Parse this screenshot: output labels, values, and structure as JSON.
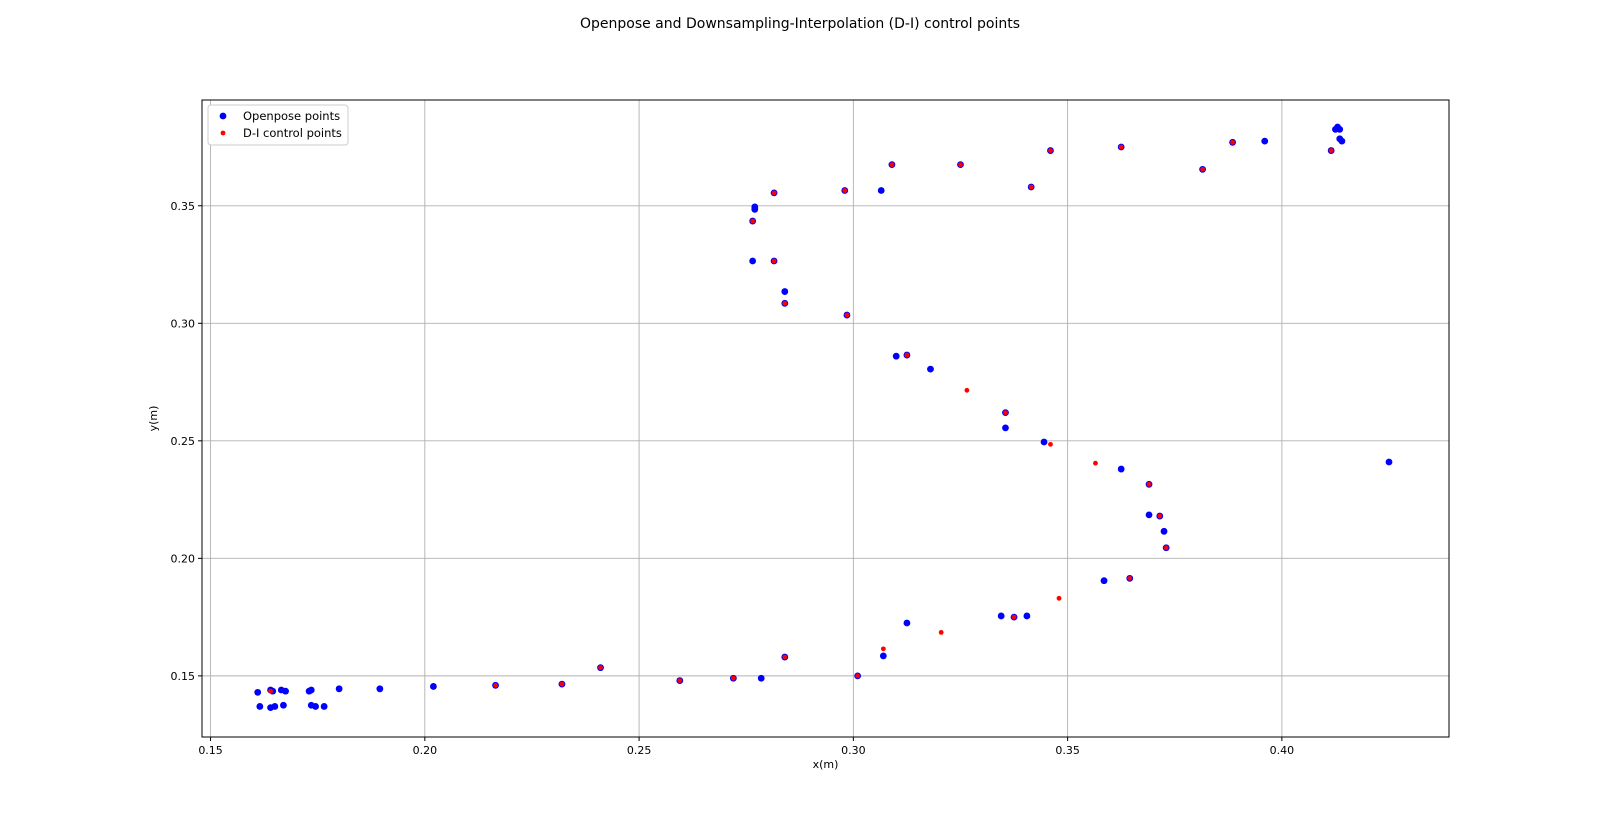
{
  "chart_data": {
    "type": "scatter",
    "title": "Openpose and Downsampling-Interpolation (D-I) control points",
    "xlabel": "x(m)",
    "ylabel": "y(m)",
    "xlim": [
      0.148,
      0.439
    ],
    "ylim": [
      0.124,
      0.395
    ],
    "xticks": [
      0.15,
      0.2,
      0.25,
      0.3,
      0.35,
      0.4
    ],
    "xtick_labels": [
      "0.15",
      "0.20",
      "0.25",
      "0.30",
      "0.35",
      "0.40"
    ],
    "yticks": [
      0.15,
      0.2,
      0.25,
      0.3,
      0.35
    ],
    "ytick_labels": [
      "0.15",
      "0.20",
      "0.25",
      "0.30",
      "0.35"
    ],
    "grid": true,
    "legend_position": "top-left",
    "series": [
      {
        "name": "Openpose points",
        "color": "#0000ff",
        "marker": "large-dot",
        "points": [
          [
            0.161,
            0.143
          ],
          [
            0.1615,
            0.137
          ],
          [
            0.164,
            0.144
          ],
          [
            0.164,
            0.1365
          ],
          [
            0.1645,
            0.1435
          ],
          [
            0.165,
            0.137
          ],
          [
            0.1665,
            0.144
          ],
          [
            0.167,
            0.1375
          ],
          [
            0.1675,
            0.1435
          ],
          [
            0.173,
            0.1435
          ],
          [
            0.1735,
            0.1375
          ],
          [
            0.1735,
            0.144
          ],
          [
            0.1745,
            0.137
          ],
          [
            0.1765,
            0.137
          ],
          [
            0.18,
            0.1445
          ],
          [
            0.1895,
            0.1445
          ],
          [
            0.202,
            0.1455
          ],
          [
            0.2165,
            0.146
          ],
          [
            0.232,
            0.1465
          ],
          [
            0.241,
            0.1535
          ],
          [
            0.2595,
            0.148
          ],
          [
            0.272,
            0.149
          ],
          [
            0.2785,
            0.149
          ],
          [
            0.284,
            0.158
          ],
          [
            0.301,
            0.15
          ],
          [
            0.307,
            0.1585
          ],
          [
            0.3125,
            0.1725
          ],
          [
            0.3345,
            0.1755
          ],
          [
            0.3375,
            0.175
          ],
          [
            0.3405,
            0.1755
          ],
          [
            0.3585,
            0.1905
          ],
          [
            0.3645,
            0.1915
          ],
          [
            0.373,
            0.2045
          ],
          [
            0.3725,
            0.2115
          ],
          [
            0.3715,
            0.218
          ],
          [
            0.369,
            0.2185
          ],
          [
            0.369,
            0.2315
          ],
          [
            0.3625,
            0.238
          ],
          [
            0.3445,
            0.2495
          ],
          [
            0.3355,
            0.2555
          ],
          [
            0.3355,
            0.262
          ],
          [
            0.318,
            0.2805
          ],
          [
            0.3125,
            0.2865
          ],
          [
            0.31,
            0.286
          ],
          [
            0.2985,
            0.3035
          ],
          [
            0.284,
            0.3085
          ],
          [
            0.284,
            0.3135
          ],
          [
            0.2815,
            0.3265
          ],
          [
            0.2765,
            0.3265
          ],
          [
            0.2765,
            0.3435
          ],
          [
            0.277,
            0.3485
          ],
          [
            0.277,
            0.3495
          ],
          [
            0.2815,
            0.3555
          ],
          [
            0.298,
            0.3565
          ],
          [
            0.3065,
            0.3565
          ],
          [
            0.309,
            0.3675
          ],
          [
            0.325,
            0.3675
          ],
          [
            0.3415,
            0.358
          ],
          [
            0.346,
            0.3735
          ],
          [
            0.3625,
            0.375
          ],
          [
            0.3815,
            0.3655
          ],
          [
            0.3885,
            0.377
          ],
          [
            0.396,
            0.3775
          ],
          [
            0.4115,
            0.3735
          ],
          [
            0.4125,
            0.3825
          ],
          [
            0.413,
            0.3835
          ],
          [
            0.4135,
            0.3825
          ],
          [
            0.4135,
            0.3785
          ],
          [
            0.414,
            0.3775
          ],
          [
            0.425,
            0.241
          ]
        ]
      },
      {
        "name": "D-I control points",
        "color": "#ff0000",
        "marker": "small-dot",
        "points": [
          [
            0.164,
            0.1435
          ],
          [
            0.2165,
            0.146
          ],
          [
            0.232,
            0.1465
          ],
          [
            0.241,
            0.1535
          ],
          [
            0.2595,
            0.148
          ],
          [
            0.272,
            0.149
          ],
          [
            0.284,
            0.158
          ],
          [
            0.301,
            0.15
          ],
          [
            0.307,
            0.1615
          ],
          [
            0.3205,
            0.1685
          ],
          [
            0.3375,
            0.175
          ],
          [
            0.348,
            0.183
          ],
          [
            0.3645,
            0.1915
          ],
          [
            0.373,
            0.2045
          ],
          [
            0.3715,
            0.218
          ],
          [
            0.369,
            0.2315
          ],
          [
            0.3565,
            0.2405
          ],
          [
            0.346,
            0.2485
          ],
          [
            0.3355,
            0.262
          ],
          [
            0.3265,
            0.2715
          ],
          [
            0.3125,
            0.2865
          ],
          [
            0.2985,
            0.3035
          ],
          [
            0.284,
            0.3085
          ],
          [
            0.2815,
            0.3265
          ],
          [
            0.2765,
            0.3435
          ],
          [
            0.2815,
            0.3555
          ],
          [
            0.298,
            0.3565
          ],
          [
            0.309,
            0.3675
          ],
          [
            0.325,
            0.3675
          ],
          [
            0.3415,
            0.358
          ],
          [
            0.346,
            0.3735
          ],
          [
            0.3625,
            0.375
          ],
          [
            0.3815,
            0.3655
          ],
          [
            0.3885,
            0.377
          ],
          [
            0.4115,
            0.3735
          ]
        ]
      }
    ]
  }
}
